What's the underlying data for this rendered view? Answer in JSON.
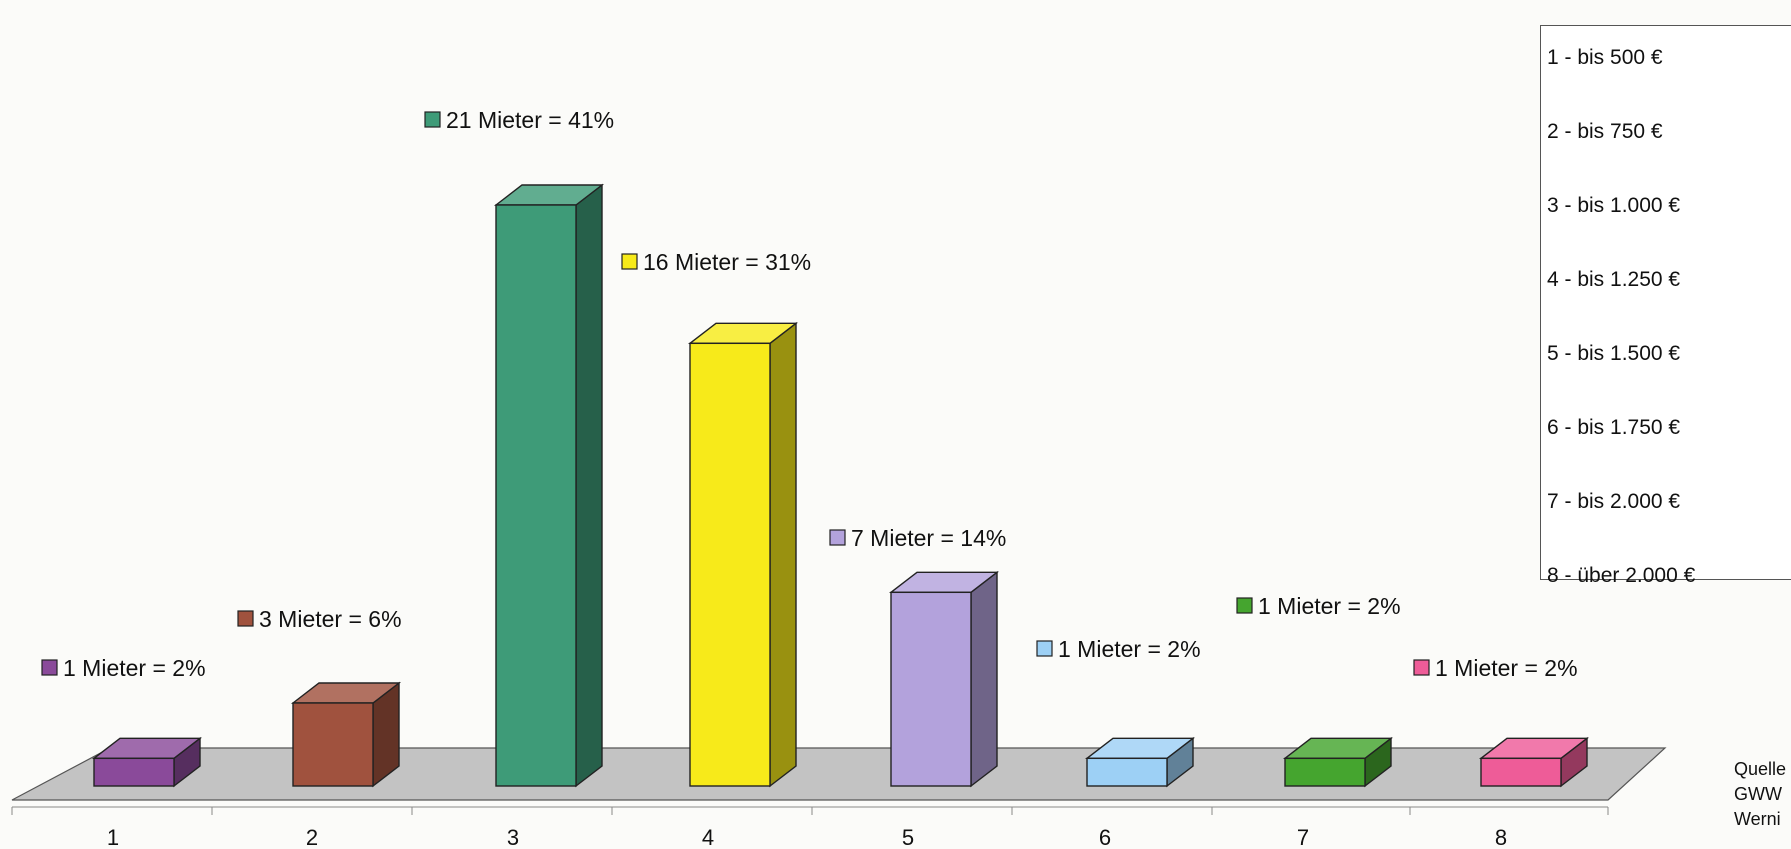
{
  "chart_data": {
    "type": "bar",
    "categories": [
      "1",
      "2",
      "3",
      "4",
      "5",
      "6",
      "7",
      "8"
    ],
    "values": [
      1,
      3,
      21,
      16,
      7,
      1,
      1,
      1
    ],
    "data_labels": [
      "1 Mieter = 2%",
      "3 Mieter = 6%",
      "21 Mieter = 41%",
      "16 Mieter = 31%",
      "7 Mieter = 14%",
      "1 Mieter = 2%",
      "1 Mieter = 2%",
      "1 Mieter = 2%"
    ],
    "colors": [
      "#8a4a9a",
      "#a0523e",
      "#3e9b78",
      "#f7ea1a",
      "#b3a2dc",
      "#9dd0f5",
      "#45a52f",
      "#ee5c98"
    ],
    "title": "",
    "xlabel": "",
    "ylabel": "",
    "ylim": [
      0,
      21
    ],
    "grid": false,
    "legend": {
      "placement": "right",
      "items": [
        "1 - bis 500 €",
        "2 - bis 750 €",
        "3 - bis 1.000 €",
        "4 - bis 1.250 €",
        "5 - bis 1.500 €",
        "6 - bis 1.750 €",
        "7 - bis 2.000 €",
        "8 - über 2.000 €"
      ]
    }
  },
  "source_note": "Quelle\nGWW\nWerni"
}
